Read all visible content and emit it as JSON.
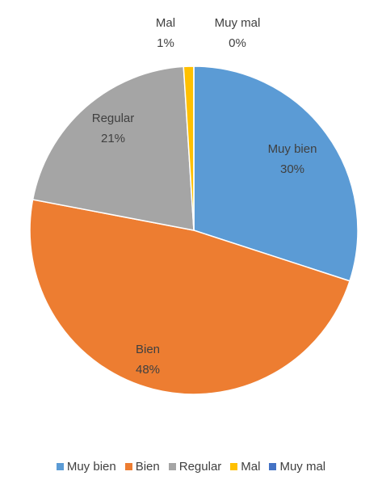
{
  "chart_data": {
    "type": "pie",
    "title": "",
    "categories": [
      "Muy bien",
      "Bien",
      "Regular",
      "Mal",
      "Muy mal"
    ],
    "values": [
      30,
      48,
      21,
      1,
      0
    ],
    "value_labels": [
      "30%",
      "48%",
      "21%",
      "1%",
      "0%"
    ],
    "colors": [
      "#5B9BD5",
      "#ED7D31",
      "#A5A5A5",
      "#FFC000",
      "#4472C4"
    ],
    "start_angle_deg": 0,
    "direction": "clockwise",
    "legend_position": "bottom"
  },
  "legend": {
    "items": [
      {
        "label": "Muy bien",
        "color": "#5B9BD5"
      },
      {
        "label": "Bien",
        "color": "#ED7D31"
      },
      {
        "label": "Regular",
        "color": "#A5A5A5"
      },
      {
        "label": "Mal",
        "color": "#FFC000"
      },
      {
        "label": "Muy mal",
        "color": "#4472C4"
      }
    ]
  }
}
